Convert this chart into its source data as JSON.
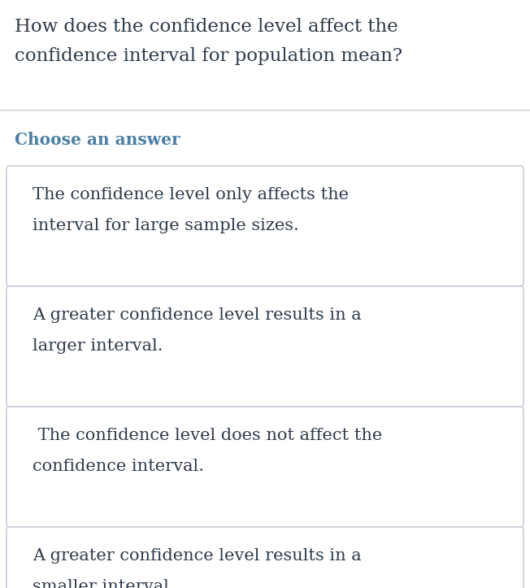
{
  "title_line1": "How does the confidence level affect the",
  "title_line2": "confidence interval for population mean?",
  "section_label": "Choose an answer",
  "options": [
    "The confidence level only affects the\ninterval for large sample sizes.",
    "A greater confidence level results in a\nlarger interval.",
    " The confidence level does not affect the\nconfidence interval.",
    "A greater confidence level results in a\nsmaller interval."
  ],
  "bg_color": "#ffffff",
  "title_color": "#2d3a4a",
  "section_label_color": "#4a7fa5",
  "option_text_color": "#2d3a4a",
  "option_bg_color": "#ffffff",
  "option_border_color": "#c8d0d8",
  "divider_color": "#c8d0d8",
  "title_fontsize": 16.5,
  "section_fontsize": 14.5,
  "option_fontsize": 15.0
}
